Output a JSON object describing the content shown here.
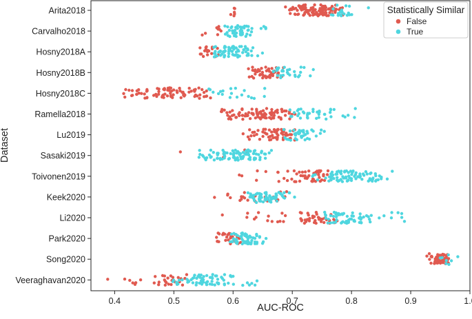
{
  "chart_data": {
    "type": "scatter",
    "title": "",
    "xlabel": "AUC-ROC",
    "ylabel": "Dataset",
    "xlim": [
      0.36,
      1.0
    ],
    "xticks": [
      0.4,
      0.5,
      0.6,
      0.7,
      0.8,
      0.9,
      1.0
    ],
    "xtick_labels": [
      "0.4",
      "0.5",
      "0.6",
      "0.7",
      "0.8",
      "0.9",
      "1.0"
    ],
    "grid": false,
    "legend": {
      "title": "Statistically Similar",
      "placement": "top-right",
      "entries": [
        {
          "label": "False",
          "color": "#e05a50"
        },
        {
          "label": "True",
          "color": "#4fd6df"
        }
      ]
    },
    "categories": [
      "Arita2018",
      "Carvalho2018",
      "Hosny2018A",
      "Hosny2018B",
      "Hosny2018C",
      "Ramella2018",
      "Lu2019",
      "Sasaki2019",
      "Toivonen2019",
      "Keek2020",
      "Li2020",
      "Park2020",
      "Song2020",
      "Veeraghavan2020"
    ],
    "groups": {
      "Arita2018": {
        "false": [
          [
            0.6,
            6
          ],
          [
            0.685,
            1
          ],
          [
            0.7,
            8
          ],
          [
            0.71,
            10
          ],
          [
            0.72,
            12
          ],
          [
            0.73,
            12
          ],
          [
            0.74,
            14
          ],
          [
            0.75,
            16
          ],
          [
            0.76,
            12
          ],
          [
            0.77,
            10
          ],
          [
            0.78,
            6
          ]
        ],
        "true": [
          [
            0.77,
            4
          ],
          [
            0.78,
            6
          ],
          [
            0.79,
            5
          ],
          [
            0.8,
            3
          ],
          [
            0.825,
            1
          ]
        ]
      },
      "Carvalho2018": {
        "false": [
          [
            0.55,
            2
          ],
          [
            0.57,
            3
          ],
          [
            0.58,
            4
          ]
        ],
        "true": [
          [
            0.59,
            6
          ],
          [
            0.6,
            12
          ],
          [
            0.61,
            14
          ],
          [
            0.62,
            10
          ],
          [
            0.63,
            4
          ],
          [
            0.65,
            2
          ],
          [
            0.66,
            2
          ]
        ]
      },
      "Hosny2018A": {
        "false": [
          [
            0.55,
            6
          ],
          [
            0.56,
            8
          ],
          [
            0.57,
            4
          ]
        ],
        "true": [
          [
            0.57,
            8
          ],
          [
            0.58,
            12
          ],
          [
            0.59,
            14
          ],
          [
            0.6,
            12
          ],
          [
            0.61,
            10
          ],
          [
            0.62,
            8
          ],
          [
            0.63,
            5
          ],
          [
            0.645,
            2
          ]
        ]
      },
      "Hosny2018B": {
        "false": [
          [
            0.63,
            6
          ],
          [
            0.64,
            8
          ],
          [
            0.65,
            10
          ],
          [
            0.66,
            12
          ],
          [
            0.67,
            10
          ],
          [
            0.68,
            4
          ]
        ],
        "true": [
          [
            0.67,
            6
          ],
          [
            0.68,
            8
          ],
          [
            0.69,
            6
          ],
          [
            0.7,
            3
          ],
          [
            0.71,
            3
          ],
          [
            0.72,
            2
          ],
          [
            0.735,
            2
          ]
        ]
      },
      "Hosny2018C": {
        "false": [
          [
            0.42,
            3
          ],
          [
            0.43,
            4
          ],
          [
            0.44,
            5
          ],
          [
            0.45,
            4
          ],
          [
            0.46,
            4
          ],
          [
            0.47,
            5
          ],
          [
            0.48,
            8
          ],
          [
            0.49,
            10
          ],
          [
            0.5,
            8
          ],
          [
            0.51,
            6
          ],
          [
            0.52,
            6
          ],
          [
            0.53,
            5
          ],
          [
            0.54,
            6
          ],
          [
            0.55,
            4
          ],
          [
            0.56,
            3
          ]
        ],
        "true": [
          [
            0.565,
            3
          ],
          [
            0.58,
            4
          ],
          [
            0.6,
            3
          ],
          [
            0.61,
            3
          ],
          [
            0.62,
            2
          ],
          [
            0.63,
            2
          ],
          [
            0.65,
            2
          ]
        ]
      },
      "Ramella2018": {
        "false": [
          [
            0.58,
            4
          ],
          [
            0.59,
            4
          ],
          [
            0.6,
            6
          ],
          [
            0.61,
            6
          ],
          [
            0.62,
            6
          ],
          [
            0.63,
            8
          ],
          [
            0.64,
            10
          ],
          [
            0.65,
            10
          ],
          [
            0.66,
            10
          ],
          [
            0.67,
            8
          ],
          [
            0.68,
            8
          ],
          [
            0.69,
            6
          ],
          [
            0.7,
            3
          ]
        ],
        "true": [
          [
            0.7,
            4
          ],
          [
            0.71,
            6
          ],
          [
            0.72,
            4
          ],
          [
            0.73,
            4
          ],
          [
            0.74,
            6
          ],
          [
            0.75,
            3
          ],
          [
            0.76,
            4
          ],
          [
            0.77,
            3
          ],
          [
            0.79,
            2
          ],
          [
            0.8,
            2
          ],
          [
            0.805,
            1
          ]
        ]
      },
      "Lu2019": {
        "false": [
          [
            0.62,
            2
          ],
          [
            0.63,
            4
          ],
          [
            0.64,
            4
          ],
          [
            0.65,
            6
          ],
          [
            0.66,
            8
          ],
          [
            0.67,
            10
          ],
          [
            0.68,
            12
          ],
          [
            0.69,
            10
          ],
          [
            0.7,
            6
          ]
        ],
        "true": [
          [
            0.69,
            4
          ],
          [
            0.7,
            6
          ],
          [
            0.71,
            10
          ],
          [
            0.72,
            8
          ],
          [
            0.73,
            5
          ],
          [
            0.745,
            3
          ],
          [
            0.755,
            1
          ]
        ]
      },
      "Sasaki2019": {
        "false": [
          [
            0.505,
            1
          ],
          [
            0.58,
            2
          ],
          [
            0.62,
            2
          ]
        ],
        "true": [
          [
            0.54,
            3
          ],
          [
            0.55,
            4
          ],
          [
            0.56,
            5
          ],
          [
            0.57,
            6
          ],
          [
            0.58,
            8
          ],
          [
            0.59,
            8
          ],
          [
            0.6,
            10
          ],
          [
            0.61,
            12
          ],
          [
            0.62,
            12
          ],
          [
            0.63,
            10
          ],
          [
            0.64,
            8
          ],
          [
            0.65,
            6
          ],
          [
            0.66,
            3
          ]
        ]
      },
      "Toivonen2019": {
        "false": [
          [
            0.61,
            2
          ],
          [
            0.64,
            2
          ],
          [
            0.65,
            1
          ],
          [
            0.68,
            3
          ],
          [
            0.69,
            3
          ],
          [
            0.7,
            3
          ],
          [
            0.71,
            5
          ],
          [
            0.72,
            6
          ],
          [
            0.73,
            8
          ],
          [
            0.74,
            10
          ],
          [
            0.75,
            8
          ],
          [
            0.76,
            4
          ]
        ],
        "true": [
          [
            0.74,
            4
          ],
          [
            0.76,
            6
          ],
          [
            0.77,
            8
          ],
          [
            0.78,
            10
          ],
          [
            0.79,
            10
          ],
          [
            0.8,
            8
          ],
          [
            0.81,
            6
          ],
          [
            0.82,
            6
          ],
          [
            0.83,
            10
          ],
          [
            0.84,
            6
          ],
          [
            0.85,
            3
          ],
          [
            0.865,
            2
          ]
        ]
      },
      "Keek2020": {
        "false": [
          [
            0.565,
            1
          ],
          [
            0.595,
            3
          ],
          [
            0.61,
            3
          ],
          [
            0.62,
            4
          ],
          [
            0.64,
            4
          ],
          [
            0.66,
            3
          ],
          [
            0.67,
            3
          ],
          [
            0.68,
            2
          ],
          [
            0.69,
            2
          ]
        ],
        "true": [
          [
            0.63,
            8
          ],
          [
            0.64,
            10
          ],
          [
            0.65,
            14
          ],
          [
            0.66,
            14
          ],
          [
            0.67,
            10
          ],
          [
            0.68,
            6
          ],
          [
            0.69,
            4
          ],
          [
            0.7,
            2
          ]
        ]
      },
      "Li2020": {
        "false": [
          [
            0.585,
            1
          ],
          [
            0.62,
            2
          ],
          [
            0.64,
            3
          ],
          [
            0.66,
            3
          ],
          [
            0.68,
            3
          ],
          [
            0.69,
            2
          ],
          [
            0.71,
            4
          ],
          [
            0.72,
            5
          ],
          [
            0.73,
            5
          ],
          [
            0.74,
            8
          ],
          [
            0.75,
            8
          ],
          [
            0.76,
            6
          ],
          [
            0.77,
            4
          ]
        ],
        "true": [
          [
            0.76,
            6
          ],
          [
            0.77,
            8
          ],
          [
            0.78,
            8
          ],
          [
            0.79,
            8
          ],
          [
            0.8,
            8
          ],
          [
            0.81,
            6
          ],
          [
            0.82,
            6
          ],
          [
            0.83,
            4
          ],
          [
            0.85,
            2
          ],
          [
            0.87,
            2
          ],
          [
            0.88,
            2
          ],
          [
            0.89,
            2
          ]
        ]
      },
      "Park2020": {
        "false": [
          [
            0.57,
            3
          ],
          [
            0.58,
            6
          ],
          [
            0.59,
            8
          ],
          [
            0.6,
            10
          ],
          [
            0.61,
            4
          ]
        ],
        "true": [
          [
            0.6,
            8
          ],
          [
            0.61,
            12
          ],
          [
            0.62,
            14
          ],
          [
            0.63,
            12
          ],
          [
            0.64,
            8
          ],
          [
            0.65,
            4
          ]
        ]
      },
      "Song2020": {
        "false": [
          [
            0.93,
            6
          ],
          [
            0.94,
            14
          ],
          [
            0.95,
            16
          ],
          [
            0.955,
            12
          ],
          [
            0.96,
            8
          ]
        ],
        "true": [
          [
            0.955,
            3
          ],
          [
            0.965,
            4
          ],
          [
            0.975,
            1
          ]
        ]
      },
      "Veeraghavan2020": {
        "false": [
          [
            0.39,
            1
          ],
          [
            0.42,
            2
          ],
          [
            0.43,
            2
          ],
          [
            0.44,
            2
          ],
          [
            0.47,
            3
          ],
          [
            0.48,
            5
          ],
          [
            0.49,
            5
          ],
          [
            0.5,
            5
          ],
          [
            0.51,
            4
          ],
          [
            0.52,
            2
          ]
        ],
        "true": [
          [
            0.5,
            3
          ],
          [
            0.51,
            4
          ],
          [
            0.52,
            5
          ],
          [
            0.53,
            6
          ],
          [
            0.54,
            8
          ],
          [
            0.55,
            10
          ],
          [
            0.56,
            10
          ],
          [
            0.57,
            8
          ],
          [
            0.58,
            6
          ],
          [
            0.59,
            4
          ],
          [
            0.6,
            3
          ],
          [
            0.62,
            2
          ],
          [
            0.63,
            2
          ],
          [
            0.64,
            2
          ]
        ]
      }
    }
  }
}
